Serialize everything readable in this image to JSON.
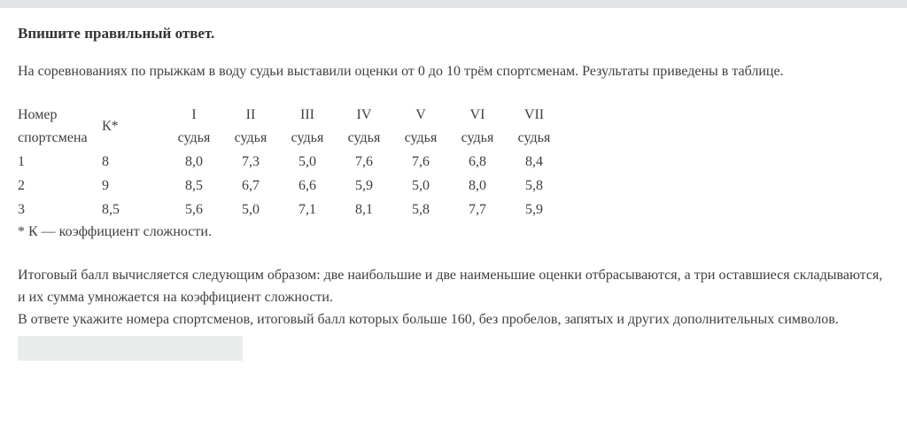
{
  "colors": {
    "top_bar": "#e1e5e6",
    "input_background": "#e8eceb",
    "text": "#3e3e3e"
  },
  "page": {
    "title": "Впишите правильный ответ.",
    "intro": "На соревнованиях по прыжкам в воду судьи выставили оценки от 0 до 10 трём спортсменам. Результаты приведены в таблице."
  },
  "table": {
    "col1_header": "Номер спортсмена",
    "col2_header": "К*",
    "judge_numerals": [
      "I",
      "II",
      "III",
      "IV",
      "V",
      "VI",
      "VII"
    ],
    "judge_label": "судья",
    "rows": [
      [
        "1",
        "8",
        "8,0",
        "7,3",
        "5,0",
        "7,6",
        "7,6",
        "6,8",
        "8,4"
      ],
      [
        "2",
        "9",
        "8,5",
        "6,7",
        "6,6",
        "5,9",
        "5,0",
        "8,0",
        "5,8"
      ],
      [
        "3",
        "8,5",
        "5,6",
        "5,0",
        "7,1",
        "8,1",
        "5,8",
        "7,7",
        "5,9"
      ]
    ],
    "footnote": "* К —  коэффициент сложности."
  },
  "explanation": {
    "lines": [
      "Итоговый балл вычисляется следующим образом: две наибольшие и две наименьшие оценки отбрасываются, а три оставшиеся складываются,",
      "и их сумма умножается на коэффициент сложности.",
      "В ответе укажите номера спортсменов, итоговый балл которых больше 160, без пробелов, запятых и других дополнительных символов."
    ]
  },
  "answer_input": {
    "value": "",
    "placeholder": ""
  }
}
